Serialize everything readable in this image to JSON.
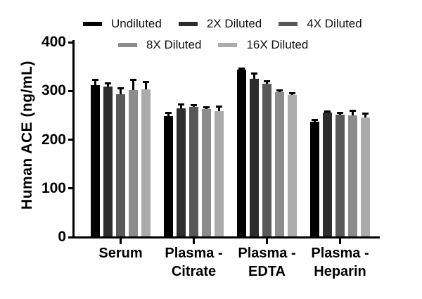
{
  "figure": {
    "background": "#ffffff",
    "axis_color": "#000000",
    "error_bar_color": "#000000"
  },
  "chart_data": {
    "type": "bar",
    "title": "",
    "xlabel": "",
    "ylabel": "Human ACE (ng/mL)",
    "ylim": [
      0,
      400
    ],
    "yticks": [
      0,
      100,
      200,
      300,
      400
    ],
    "grid": false,
    "legend_position": "top",
    "error_bars": "upper whisker with cap",
    "categories": [
      "Serum",
      "Plasma - Citrate",
      "Plasma - EDTA",
      "Plasma - Heparin"
    ],
    "category_lines": [
      [
        "Serum"
      ],
      [
        "Plasma -",
        "Citrate"
      ],
      [
        "Plasma -",
        "EDTA"
      ],
      [
        "Plasma -",
        "Heparin"
      ]
    ],
    "series": [
      {
        "name": "Undiluted",
        "color": "#000000",
        "values": [
          310,
          247,
          342,
          235
        ],
        "errors": [
          11,
          7,
          3,
          4
        ]
      },
      {
        "name": "2X Diluted",
        "color": "#2d2d2d",
        "values": [
          307,
          263,
          323,
          254
        ],
        "errors": [
          7,
          8,
          11,
          3
        ]
      },
      {
        "name": "4X Diluted",
        "color": "#595959",
        "values": [
          292,
          265,
          313,
          250
        ],
        "errors": [
          12,
          4,
          5,
          4
        ]
      },
      {
        "name": "8X Diluted",
        "color": "#8c8c8c",
        "values": [
          301,
          262,
          296,
          248
        ],
        "errors": [
          20,
          3,
          4,
          10
        ]
      },
      {
        "name": "16X Diluted",
        "color": "#ababab",
        "values": [
          302,
          257,
          290,
          244
        ],
        "errors": [
          15,
          10,
          4,
          8
        ]
      }
    ]
  }
}
